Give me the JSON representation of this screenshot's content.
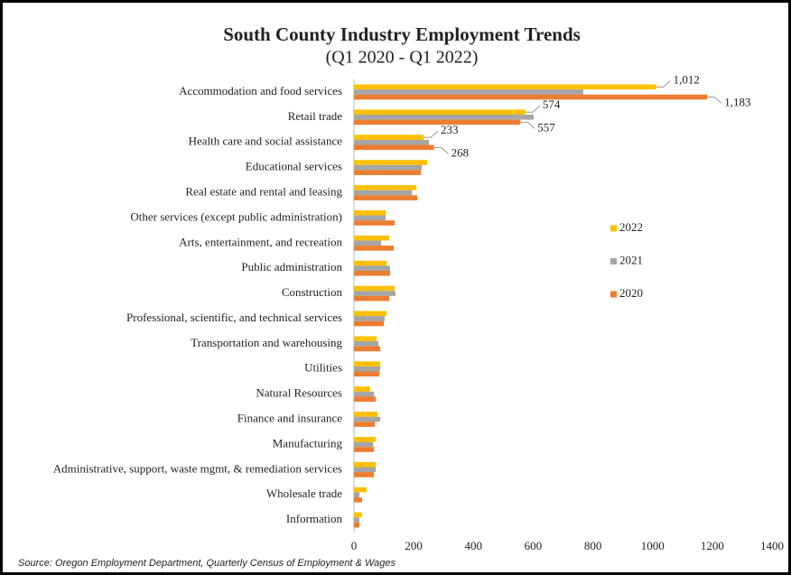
{
  "chart_data": {
    "type": "hbar",
    "title": "South County Industry Employment Trends",
    "subtitle": "(Q1 2020 - Q1 2022)",
    "source": "Source: Oregon Employment Department, Quarterly Census of Employment & Wages",
    "categories": [
      "Accommodation and food services",
      "Retail trade",
      "Health care and social assistance",
      "Educational services",
      "Real estate and rental and leasing",
      "Other services (except public administration)",
      "Arts, entertainment, and recreation",
      "Public administration",
      "Construction",
      "Professional, scientific, and technical services",
      "Transportation and warehousing",
      "Utilities",
      "Natural Resources",
      "Finance and insurance",
      "Manufacturing",
      "Administrative, support, waste mgmt, & remediation services",
      "Wholesale trade",
      "Information"
    ],
    "series": [
      {
        "name": "2022",
        "color": "#ffc000",
        "values": [
          1012,
          574,
          233,
          245,
          209,
          106,
          118,
          109,
          136,
          109,
          76,
          88,
          54,
          79,
          73,
          73,
          42,
          27
        ],
        "value_labels": [
          "1,012",
          "574",
          "233",
          null,
          null,
          null,
          null,
          null,
          null,
          null,
          null,
          null,
          null,
          null,
          null,
          null,
          null,
          null
        ]
      },
      {
        "name": "2021",
        "color": "#a5a5a5",
        "values": [
          768,
          602,
          251,
          227,
          194,
          106,
          91,
          121,
          139,
          103,
          82,
          88,
          67,
          88,
          64,
          73,
          18,
          18
        ]
      },
      {
        "name": "2020",
        "color": "#ed7d31",
        "values": [
          1183,
          557,
          268,
          224,
          212,
          136,
          133,
          121,
          118,
          100,
          88,
          85,
          73,
          70,
          67,
          67,
          27,
          18
        ],
        "value_labels": [
          "1,183",
          "557",
          "268",
          null,
          null,
          null,
          null,
          null,
          null,
          null,
          null,
          null,
          null,
          null,
          null,
          null,
          null,
          null
        ]
      }
    ],
    "xlim": [
      0,
      1400
    ],
    "xticks": [
      0,
      200,
      400,
      600,
      800,
      1000,
      1200,
      1400
    ],
    "legend": "right"
  }
}
